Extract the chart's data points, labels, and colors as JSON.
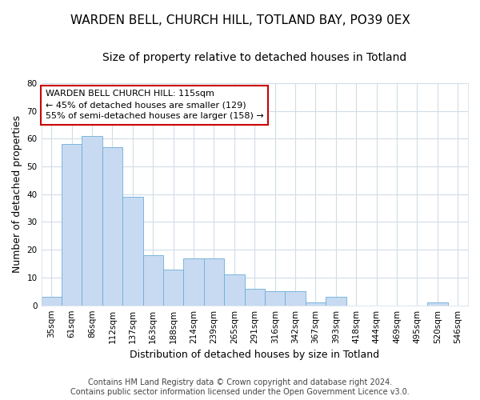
{
  "title": "WARDEN BELL, CHURCH HILL, TOTLAND BAY, PO39 0EX",
  "subtitle": "Size of property relative to detached houses in Totland",
  "xlabel": "Distribution of detached houses by size in Totland",
  "ylabel": "Number of detached properties",
  "categories": [
    "35sqm",
    "61sqm",
    "86sqm",
    "112sqm",
    "137sqm",
    "163sqm",
    "188sqm",
    "214sqm",
    "239sqm",
    "265sqm",
    "291sqm",
    "316sqm",
    "342sqm",
    "367sqm",
    "393sqm",
    "418sqm",
    "444sqm",
    "469sqm",
    "495sqm",
    "520sqm",
    "546sqm"
  ],
  "values": [
    3,
    58,
    61,
    57,
    39,
    18,
    13,
    17,
    17,
    11,
    6,
    5,
    5,
    1,
    3,
    0,
    0,
    0,
    0,
    1,
    0
  ],
  "bar_color": "#c8daf2",
  "bar_edge_color": "#6baed6",
  "annotation_title": "WARDEN BELL CHURCH HILL: 115sqm",
  "annotation_line1": "← 45% of detached houses are smaller (129)",
  "annotation_line2": "55% of semi-detached houses are larger (158) →",
  "annotation_box_color": "#ffffff",
  "annotation_box_edge_color": "#cc0000",
  "ylim": [
    0,
    80
  ],
  "yticks": [
    0,
    10,
    20,
    30,
    40,
    50,
    60,
    70,
    80
  ],
  "footer1": "Contains HM Land Registry data © Crown copyright and database right 2024.",
  "footer2": "Contains public sector information licensed under the Open Government Licence v3.0.",
  "bg_color": "#ffffff",
  "plot_bg_color": "#ffffff",
  "grid_color": "#d0dce8",
  "title_fontsize": 11,
  "subtitle_fontsize": 10,
  "axis_label_fontsize": 9,
  "tick_fontsize": 7.5,
  "annotation_fontsize": 8,
  "footer_fontsize": 7
}
